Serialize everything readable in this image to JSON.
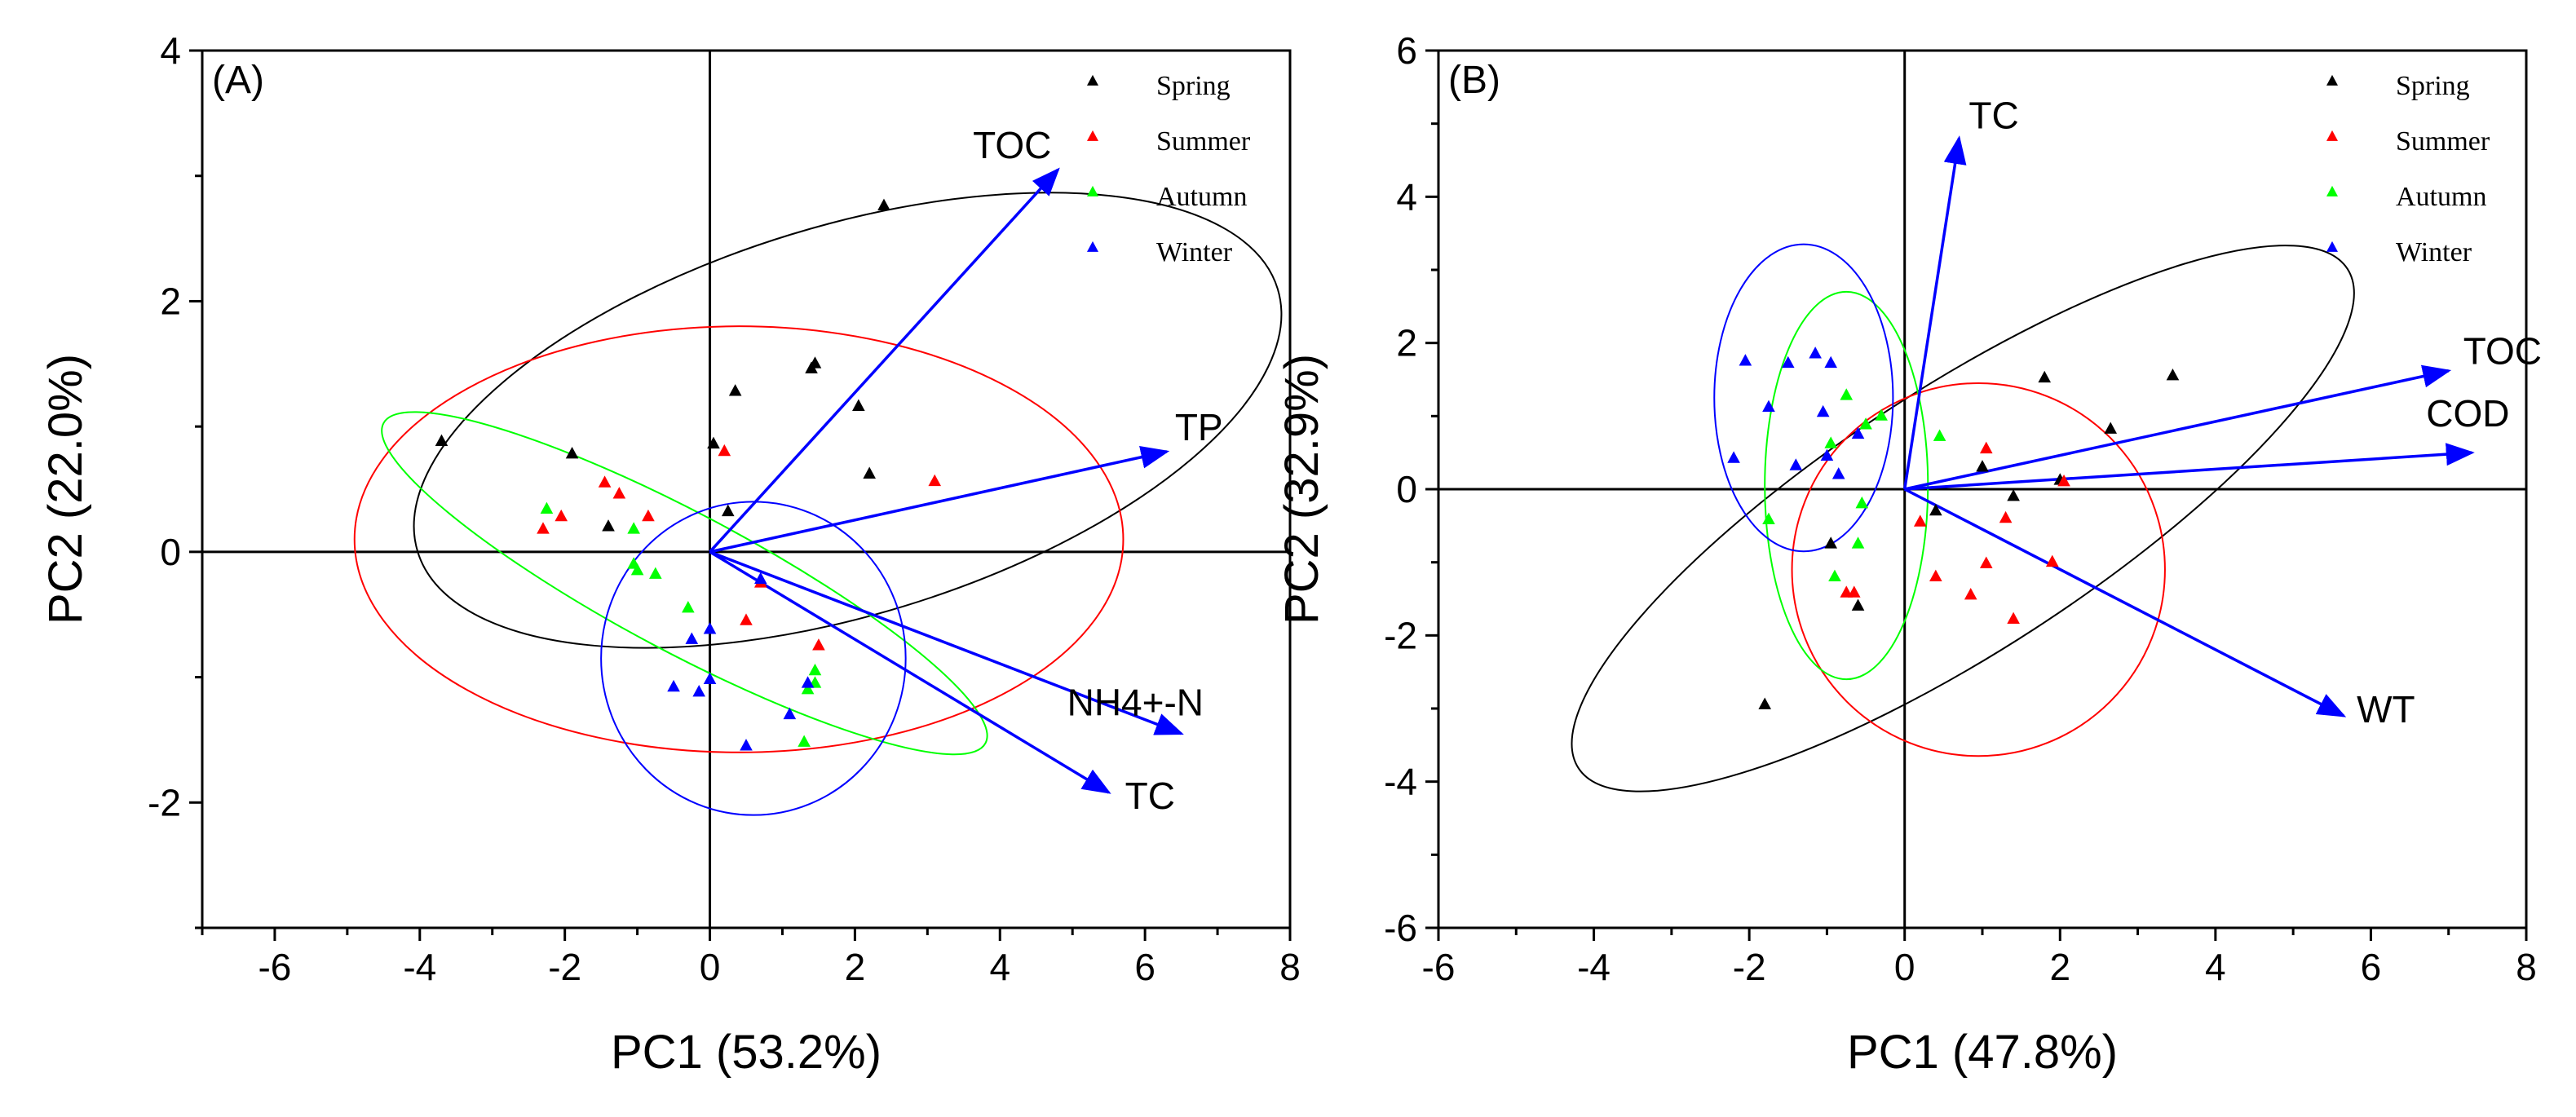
{
  "chart_data": [
    {
      "type": "scatter",
      "subtype": "pca-biplot",
      "panel_label": "(A)",
      "xlabel": "PC1 (53.2%)",
      "ylabel": "PC2 (22.0%)",
      "xlim": [
        -7,
        8
      ],
      "ylim": [
        -3,
        4
      ],
      "xticks": [
        -6,
        -4,
        -2,
        0,
        2,
        4,
        6,
        8
      ],
      "yticks": [
        -2,
        0,
        2,
        4
      ],
      "legend_position": "top-right",
      "series": [
        {
          "name": "Spring",
          "color": "#000000",
          "points": [
            [
              -3.7,
              0.88
            ],
            [
              -1.9,
              0.78
            ],
            [
              -1.4,
              0.2
            ],
            [
              0.05,
              0.86
            ],
            [
              0.25,
              0.32
            ],
            [
              0.35,
              1.28
            ],
            [
              1.4,
              1.46
            ],
            [
              1.45,
              1.5
            ],
            [
              2.05,
              1.16
            ],
            [
              2.2,
              0.62
            ],
            [
              2.4,
              2.76
            ]
          ]
        },
        {
          "name": "Summer",
          "color": "#ff0000",
          "points": [
            [
              -2.3,
              0.18
            ],
            [
              -2.05,
              0.28
            ],
            [
              -1.45,
              0.55
            ],
            [
              -1.25,
              0.46
            ],
            [
              -0.85,
              0.28
            ],
            [
              0.2,
              0.8
            ],
            [
              0.5,
              -0.55
            ],
            [
              0.7,
              -0.25
            ],
            [
              1.5,
              -0.75
            ],
            [
              3.1,
              0.56
            ]
          ]
        },
        {
          "name": "Autumn",
          "color": "#00ff00",
          "points": [
            [
              -2.25,
              0.34
            ],
            [
              -1.05,
              0.18
            ],
            [
              -1.05,
              -0.1
            ],
            [
              -1.0,
              -0.15
            ],
            [
              -0.75,
              -0.18
            ],
            [
              -0.3,
              -0.45
            ],
            [
              1.3,
              -1.52
            ],
            [
              1.35,
              -1.1
            ],
            [
              1.45,
              -0.95
            ],
            [
              1.45,
              -1.05
            ]
          ]
        },
        {
          "name": "Winter",
          "color": "#0000ff",
          "points": [
            [
              -0.5,
              -1.08
            ],
            [
              -0.25,
              -0.7
            ],
            [
              -0.15,
              -1.12
            ],
            [
              0.0,
              -0.62
            ],
            [
              0.0,
              -1.02
            ],
            [
              0.5,
              -1.55
            ],
            [
              0.7,
              -0.22
            ],
            [
              1.1,
              -1.3
            ],
            [
              1.35,
              -1.05
            ]
          ]
        }
      ],
      "loadings": [
        {
          "name": "TOC",
          "x": 4.8,
          "y": 3.05
        },
        {
          "name": "TP",
          "x": 6.3,
          "y": 0.8
        },
        {
          "name": "NH4+-N",
          "x": 6.5,
          "y": -1.45
        },
        {
          "name": "TC",
          "x": 5.5,
          "y": -1.92
        }
      ],
      "ellipses": [
        {
          "series": "Spring",
          "cx": 1.9,
          "cy": 1.05,
          "rx": 6.2,
          "ry": 1.55,
          "angle_deg": 17
        },
        {
          "series": "Summer",
          "cx": 0.4,
          "cy": 0.1,
          "rx": 5.3,
          "ry": 1.7,
          "angle_deg": 0
        },
        {
          "series": "Autumn",
          "cx": -0.35,
          "cy": -0.25,
          "rx": 4.7,
          "ry": 0.55,
          "angle_deg": -28
        },
        {
          "series": "Winter",
          "cx": 0.6,
          "cy": -0.85,
          "rx": 2.1,
          "ry": 1.25,
          "angle_deg": 0
        }
      ]
    },
    {
      "type": "scatter",
      "subtype": "pca-biplot",
      "panel_label": "(B)",
      "xlabel": "PC1 (47.8%)",
      "ylabel": "PC2 (32.9%)",
      "xlim": [
        -6,
        8
      ],
      "ylim": [
        -6,
        6
      ],
      "xticks": [
        -6,
        -4,
        -2,
        0,
        2,
        4,
        6,
        8
      ],
      "yticks": [
        -6,
        -4,
        -2,
        0,
        2,
        4,
        6
      ],
      "legend_position": "top-right",
      "series": [
        {
          "name": "Spring",
          "color": "#000000",
          "points": [
            [
              -1.8,
              -2.95
            ],
            [
              -0.95,
              -0.75
            ],
            [
              -0.6,
              -1.6
            ],
            [
              0.4,
              -0.3
            ],
            [
              1.0,
              0.3
            ],
            [
              1.4,
              -0.1
            ],
            [
              1.8,
              1.52
            ],
            [
              2.0,
              0.12
            ],
            [
              2.65,
              0.82
            ],
            [
              3.45,
              1.55
            ]
          ]
        },
        {
          "name": "Summer",
          "color": "#ff0000",
          "points": [
            [
              -0.75,
              -1.42
            ],
            [
              -0.65,
              -1.42
            ],
            [
              0.2,
              -0.45
            ],
            [
              0.4,
              -1.2
            ],
            [
              0.85,
              -1.45
            ],
            [
              1.05,
              -1.02
            ],
            [
              1.05,
              0.55
            ],
            [
              1.3,
              -0.4
            ],
            [
              1.4,
              -1.78
            ],
            [
              1.9,
              -1.0
            ],
            [
              2.05,
              0.1
            ]
          ]
        },
        {
          "name": "Autumn",
          "color": "#00ff00",
          "points": [
            [
              -1.75,
              -0.42
            ],
            [
              -0.95,
              0.62
            ],
            [
              -0.9,
              -1.2
            ],
            [
              -0.75,
              1.28
            ],
            [
              -0.6,
              -0.75
            ],
            [
              -0.55,
              -0.2
            ],
            [
              -0.5,
              0.88
            ],
            [
              -0.3,
              1.0
            ],
            [
              0.45,
              0.72
            ]
          ]
        },
        {
          "name": "Winter",
          "color": "#0000ff",
          "points": [
            [
              -2.2,
              0.42
            ],
            [
              -2.05,
              1.75
            ],
            [
              -1.75,
              1.12
            ],
            [
              -1.5,
              1.72
            ],
            [
              -1.4,
              0.32
            ],
            [
              -1.15,
              1.85
            ],
            [
              -1.05,
              1.05
            ],
            [
              -1.0,
              0.45
            ],
            [
              -0.95,
              1.72
            ],
            [
              -0.85,
              0.2
            ],
            [
              -0.6,
              0.75
            ]
          ]
        }
      ],
      "loadings": [
        {
          "name": "TC",
          "x": 0.7,
          "y": 4.8
        },
        {
          "name": "TOC",
          "x": 7.0,
          "y": 1.62
        },
        {
          "name": "COD",
          "x": 7.3,
          "y": 0.5
        },
        {
          "name": "WT",
          "x": 5.65,
          "y": -3.1
        }
      ],
      "ellipses": [
        {
          "series": "Spring",
          "cx": 0.75,
          "cy": -0.4,
          "rx": 5.9,
          "ry": 1.8,
          "angle_deg": 33
        },
        {
          "series": "Summer",
          "cx": 0.95,
          "cy": -1.1,
          "rx": 2.4,
          "ry": 2.55,
          "angle_deg": 0
        },
        {
          "series": "Autumn",
          "cx": -0.75,
          "cy": 0.05,
          "rx": 1.05,
          "ry": 2.65,
          "angle_deg": 0
        },
        {
          "series": "Winter",
          "cx": -1.3,
          "cy": 1.25,
          "rx": 1.15,
          "ry": 2.1,
          "angle_deg": 0
        }
      ]
    }
  ],
  "colors": {
    "axis": "#000000",
    "arrow": "#0000ff",
    "Spring": "#000000",
    "Summer": "#ff0000",
    "Autumn": "#00ff00",
    "Winter": "#0000ff"
  }
}
